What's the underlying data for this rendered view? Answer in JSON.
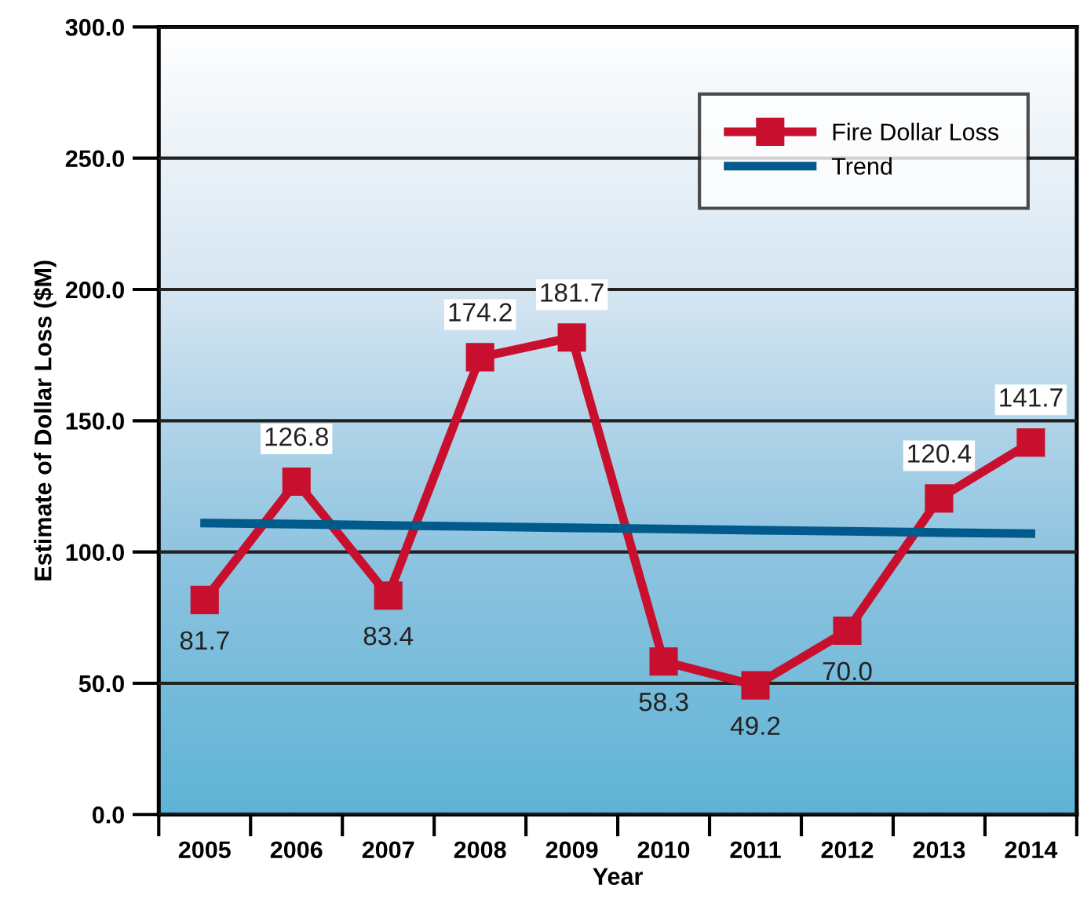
{
  "chart_data": {
    "type": "line",
    "xlabel": "Year",
    "ylabel": "Estimate of Dollar Loss ($M)",
    "categories": [
      "2005",
      "2006",
      "2007",
      "2008",
      "2009",
      "2010",
      "2011",
      "2012",
      "2013",
      "2014"
    ],
    "series": [
      {
        "name": "Fire Dollar Loss",
        "color": "#c8102e",
        "marker": "square",
        "values": [
          81.7,
          126.8,
          83.4,
          174.2,
          181.7,
          58.3,
          49.2,
          70.0,
          120.4,
          141.7
        ],
        "value_labels": [
          "81.7",
          "126.8",
          "83.4",
          "174.2",
          "181.7",
          "58.3",
          "49.2",
          "70.0",
          "120.4",
          "141.7"
        ]
      },
      {
        "name": "Trend",
        "color": "#005a8c",
        "marker": "none",
        "values": [
          111,
          110.6,
          110.1,
          109.7,
          109.2,
          108.8,
          108.3,
          107.9,
          107.4,
          107
        ]
      }
    ],
    "ylim": [
      0,
      300
    ],
    "yticks": [
      {
        "value": 0,
        "label": "0.0"
      },
      {
        "value": 50,
        "label": "50.0"
      },
      {
        "value": 100,
        "label": "100.0"
      },
      {
        "value": 150,
        "label": "150.0"
      },
      {
        "value": 200,
        "label": "200.0"
      },
      {
        "value": 250,
        "label": "250.0"
      },
      {
        "value": 300,
        "label": "300.0"
      }
    ],
    "grid": "y",
    "legend": "top right"
  }
}
